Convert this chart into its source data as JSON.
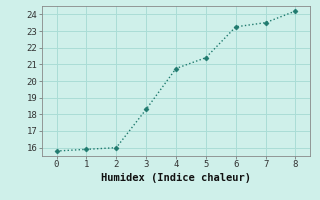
{
  "x": [
    0,
    1,
    2,
    3,
    4,
    5,
    6,
    7,
    8
  ],
  "y": [
    15.8,
    15.9,
    16.0,
    18.3,
    20.75,
    21.4,
    23.25,
    23.5,
    24.2
  ],
  "line_color": "#1f7a6e",
  "marker": "D",
  "marker_size": 2.5,
  "bg_color": "#cff0ea",
  "grid_color": "#aaddd6",
  "xlabel": "Humidex (Indice chaleur)",
  "xlabel_fontsize": 7.5,
  "xlim": [
    -0.5,
    8.5
  ],
  "ylim": [
    15.5,
    24.5
  ],
  "yticks": [
    16,
    17,
    18,
    19,
    20,
    21,
    22,
    23,
    24
  ],
  "xticks": [
    0,
    1,
    2,
    3,
    4,
    5,
    6,
    7,
    8
  ],
  "tick_fontsize": 6.5,
  "line_width": 1.0,
  "line_style": ":"
}
